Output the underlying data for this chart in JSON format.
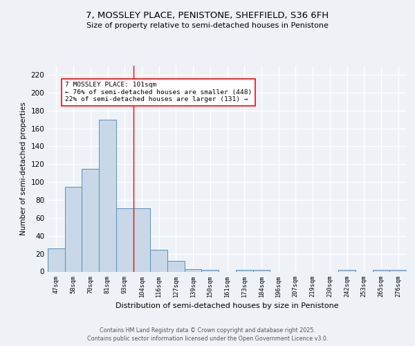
{
  "title1": "7, MOSSLEY PLACE, PENISTONE, SHEFFIELD, S36 6FH",
  "title2": "Size of property relative to semi-detached houses in Penistone",
  "xlabel": "Distribution of semi-detached houses by size in Penistone",
  "ylabel_text": "Number of semi-detached properties",
  "categories": [
    "47sqm",
    "58sqm",
    "70sqm",
    "81sqm",
    "93sqm",
    "104sqm",
    "116sqm",
    "127sqm",
    "139sqm",
    "150sqm",
    "161sqm",
    "173sqm",
    "184sqm",
    "196sqm",
    "207sqm",
    "219sqm",
    "230sqm",
    "242sqm",
    "253sqm",
    "265sqm",
    "276sqm"
  ],
  "values": [
    26,
    95,
    115,
    170,
    71,
    71,
    24,
    12,
    3,
    2,
    0,
    2,
    2,
    0,
    0,
    0,
    0,
    2,
    0,
    2,
    2
  ],
  "bar_color": "#c8d8e8",
  "bar_edge_color": "#5b8db8",
  "red_line_bin_index": 4,
  "property_label": "7 MOSSLEY PLACE: 101sqm",
  "pct_smaller": 76,
  "pct_smaller_count": 448,
  "pct_larger": 22,
  "pct_larger_count": 131,
  "ylim": [
    0,
    230
  ],
  "yticks": [
    0,
    20,
    40,
    60,
    80,
    100,
    120,
    140,
    160,
    180,
    200,
    220
  ],
  "footer": "Contains HM Land Registry data © Crown copyright and database right 2025.\nContains public sector information licensed under the Open Government Licence v3.0.",
  "bg_color": "#eef2f7",
  "plot_bg_color": "#eef2f7"
}
